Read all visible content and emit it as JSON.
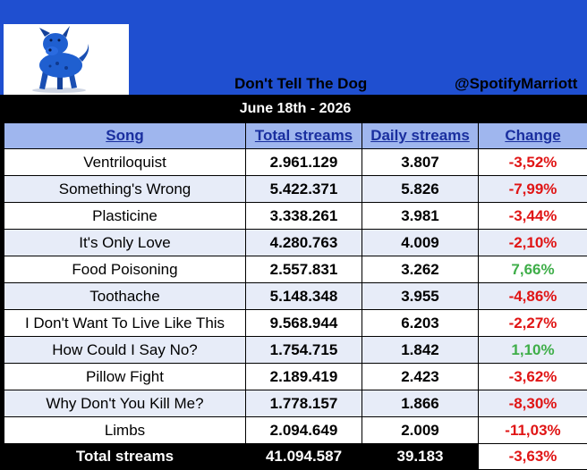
{
  "header": {
    "artist": "Don't Tell The Dog",
    "handle": "@SpotifyMarriott",
    "date": "June 18th - 2026",
    "logo_icon": "blue-dog-icon"
  },
  "columns": [
    "Song",
    "Total streams",
    "Daily streams",
    "Change"
  ],
  "rows": [
    {
      "song": "Ventriloquist",
      "total": "2.961.129",
      "daily": "3.807",
      "change": "-3,52%",
      "trend": "neg"
    },
    {
      "song": "Something's Wrong",
      "total": "5.422.371",
      "daily": "5.826",
      "change": "-7,99%",
      "trend": "neg"
    },
    {
      "song": "Plasticine",
      "total": "3.338.261",
      "daily": "3.981",
      "change": "-3,44%",
      "trend": "neg"
    },
    {
      "song": "It's Only Love",
      "total": "4.280.763",
      "daily": "4.009",
      "change": "-2,10%",
      "trend": "neg"
    },
    {
      "song": "Food Poisoning",
      "total": "2.557.831",
      "daily": "3.262",
      "change": "7,66%",
      "trend": "pos"
    },
    {
      "song": "Toothache",
      "total": "5.148.348",
      "daily": "3.955",
      "change": "-4,86%",
      "trend": "neg"
    },
    {
      "song": "I Don't Want To Live Like This",
      "total": "9.568.944",
      "daily": "6.203",
      "change": "-2,27%",
      "trend": "neg"
    },
    {
      "song": "How Could I Say No?",
      "total": "1.754.715",
      "daily": "1.842",
      "change": "1,10%",
      "trend": "pos"
    },
    {
      "song": "Pillow Fight",
      "total": "2.189.419",
      "daily": "2.423",
      "change": "-3,62%",
      "trend": "neg"
    },
    {
      "song": "Why Don't You Kill Me?",
      "total": "1.778.157",
      "daily": "1.866",
      "change": "-8,30%",
      "trend": "neg"
    },
    {
      "song": "Limbs",
      "total": "2.094.649",
      "daily": "2.009",
      "change": "-11,03%",
      "trend": "neg"
    }
  ],
  "footer": {
    "label": "Total streams",
    "total": "41.094.587",
    "daily": "39.183",
    "change": "-3,63%"
  },
  "colors": {
    "header_blue": "#1f4fd0",
    "column_header_bg": "#9fb6ee",
    "column_header_text": "#1a2f9f",
    "negative": "#e01515",
    "positive": "#3fae49"
  }
}
